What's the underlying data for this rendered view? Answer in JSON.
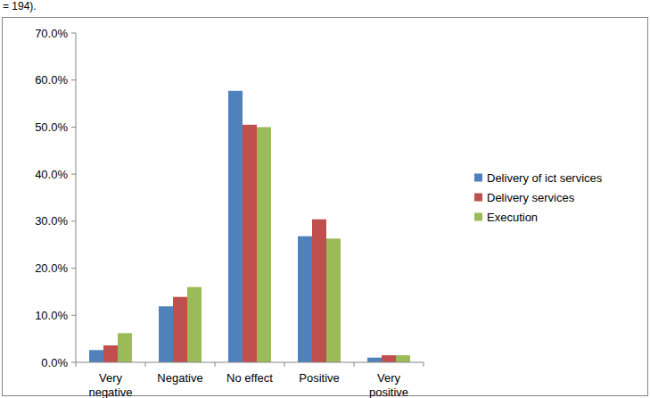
{
  "chart_data": {
    "type": "bar",
    "title": "= 194).",
    "categories": [
      "Very negative",
      "Negative",
      "No effect",
      "Positive",
      "Very positive"
    ],
    "series": [
      {
        "name": "Delivery of ict services",
        "color": "#4f81bd",
        "values": [
          2.6,
          11.9,
          57.7,
          26.8,
          1.0
        ]
      },
      {
        "name": "Delivery services",
        "color": "#c0504d",
        "values": [
          3.6,
          13.9,
          50.5,
          30.4,
          1.5
        ]
      },
      {
        "name": "Execution",
        "color": "#9bbb59",
        "values": [
          6.2,
          16.0,
          50.0,
          26.3,
          1.5
        ]
      }
    ],
    "ylim": [
      0,
      70
    ],
    "yticks": [
      {
        "value": 0,
        "label": "0.0%"
      },
      {
        "value": 10,
        "label": "10.0%"
      },
      {
        "value": 20,
        "label": "20.0%"
      },
      {
        "value": 30,
        "label": "30.0%"
      },
      {
        "value": 40,
        "label": "40.0%"
      },
      {
        "value": 50,
        "label": "50.0%"
      },
      {
        "value": 60,
        "label": "60.0%"
      },
      {
        "value": 70,
        "label": "70.0%"
      }
    ],
    "grid": false,
    "legend": "right"
  }
}
